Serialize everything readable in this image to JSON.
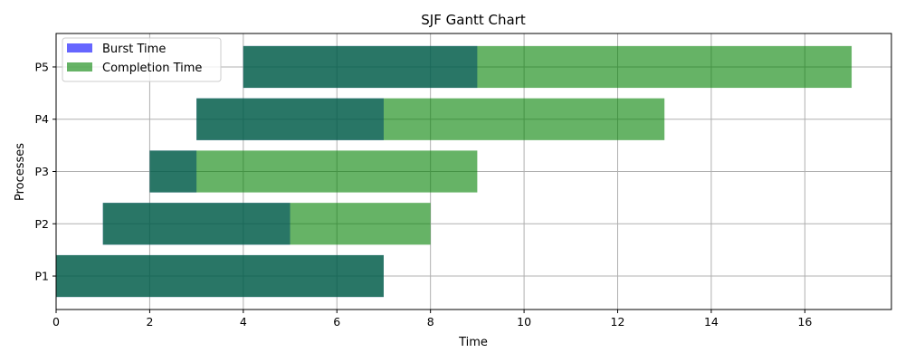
{
  "chart_data": {
    "type": "bar",
    "orientation": "horizontal",
    "title": "SJF Gantt Chart",
    "xlabel": "Time",
    "ylabel": "Processes",
    "xlim": [
      0,
      17.85
    ],
    "xticks": [
      0,
      2,
      4,
      6,
      8,
      10,
      12,
      14,
      16
    ],
    "categories": [
      "P1",
      "P2",
      "P3",
      "P4",
      "P5"
    ],
    "grid": true,
    "legend_position": "top-left",
    "series": [
      {
        "name": "Burst Time",
        "color": "#0000ff",
        "opacity": 0.6,
        "starts": [
          0,
          1,
          2,
          3,
          4
        ],
        "values": [
          7,
          4,
          1,
          4,
          5
        ]
      },
      {
        "name": "Completion Time",
        "color": "#008000",
        "opacity": 0.6,
        "starts": [
          0,
          1,
          2,
          3,
          4
        ],
        "values": [
          7,
          7,
          7,
          10,
          13
        ]
      }
    ]
  }
}
